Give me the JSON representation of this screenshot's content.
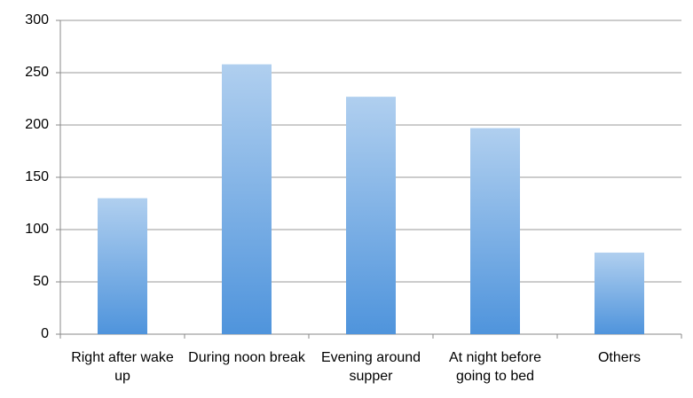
{
  "chart_data": {
    "type": "bar",
    "categories": [
      "Right after wake up",
      "During noon break",
      "Evening around supper",
      "At night before going to bed",
      "Others"
    ],
    "values": [
      130,
      258,
      227,
      197,
      78
    ],
    "color": "#4f94dc",
    "ylim": [
      0,
      300
    ],
    "yticks": [
      0,
      50,
      100,
      150,
      200,
      250,
      300
    ],
    "grid": true
  }
}
